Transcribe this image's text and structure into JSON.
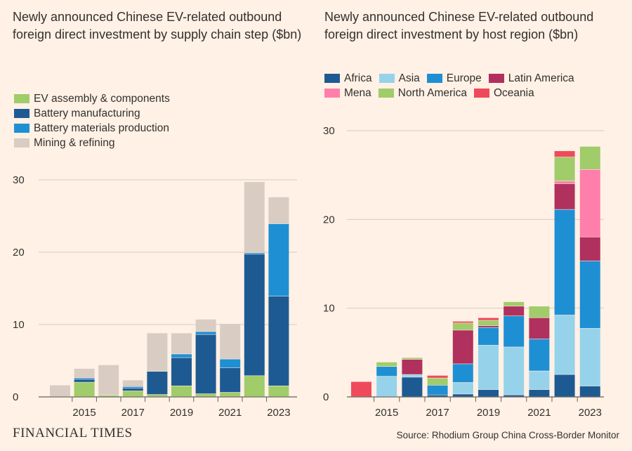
{
  "brand": "FINANCIAL TIMES",
  "source": "Source: Rhodium Group China Cross-Border Monitor",
  "chart_data": [
    {
      "type": "bar",
      "stacked": true,
      "title": "Newly announced Chinese EV-related outbound foreign direct investment by supply chain step ($bn)",
      "x": [
        2014,
        2015,
        2016,
        2017,
        2018,
        2019,
        2020,
        2021,
        2022,
        2023
      ],
      "x_tick_labels": [
        "2015",
        "2017",
        "2019",
        "2021",
        "2023"
      ],
      "y_ticks": [
        0,
        10,
        20,
        30
      ],
      "ylim": [
        0,
        30
      ],
      "legend_position": "top-left",
      "series": [
        {
          "name": "EV assembly & components",
          "color": "#a0cc6a",
          "values": [
            0,
            2.0,
            0.2,
            0.8,
            0.3,
            1.5,
            0.4,
            0.6,
            2.9,
            1.5
          ]
        },
        {
          "name": "Battery manufacturing",
          "color": "#1e5a92",
          "values": [
            0,
            0.4,
            0,
            0.4,
            3.2,
            3.9,
            8.2,
            3.4,
            16.8,
            12.4
          ]
        },
        {
          "name": "Battery materials production",
          "color": "#1f8fd3",
          "values": [
            0,
            0.2,
            0,
            0.2,
            0,
            0.5,
            0.4,
            1.2,
            0.2,
            10.0
          ]
        },
        {
          "name": "Mining & refining",
          "color": "#d9ccc3",
          "values": [
            1.6,
            1.3,
            4.2,
            0.9,
            5.3,
            2.9,
            1.7,
            4.9,
            9.8,
            3.7
          ]
        }
      ]
    },
    {
      "type": "bar",
      "stacked": true,
      "title": "Newly announced Chinese EV-related outbound foreign direct investment by host region ($bn)",
      "x": [
        2014,
        2015,
        2016,
        2017,
        2018,
        2019,
        2020,
        2021,
        2022,
        2023
      ],
      "x_tick_labels": [
        "2015",
        "2017",
        "2019",
        "2021",
        "2023"
      ],
      "y_ticks": [
        0,
        10,
        20,
        30
      ],
      "ylim": [
        0,
        30
      ],
      "legend_position": "top",
      "series": [
        {
          "name": "Africa",
          "color": "#1e5a92",
          "values": [
            0,
            0,
            2.2,
            0.2,
            0.3,
            0.8,
            0.2,
            0.8,
            2.5,
            1.2
          ]
        },
        {
          "name": "Asia",
          "color": "#96d3eb",
          "values": [
            0,
            2.3,
            0.3,
            0,
            1.3,
            5.0,
            5.4,
            2.1,
            6.7,
            6.5
          ]
        },
        {
          "name": "Europe",
          "color": "#1f8fd3",
          "values": [
            0,
            1.1,
            0,
            1.1,
            2.1,
            2.0,
            3.5,
            3.6,
            11.9,
            7.6
          ]
        },
        {
          "name": "Latin America",
          "color": "#b0305e",
          "values": [
            0,
            0,
            1.7,
            0,
            3.8,
            0.2,
            1.1,
            2.4,
            2.9,
            2.7
          ]
        },
        {
          "name": "Mena",
          "color": "#ff7fab",
          "values": [
            0,
            0,
            0,
            0,
            0,
            0,
            0,
            0,
            0.3,
            7.6
          ]
        },
        {
          "name": "North America",
          "color": "#a0cc6a",
          "values": [
            0,
            0.5,
            0.2,
            0.8,
            0.8,
            0.6,
            0.5,
            1.3,
            2.7,
            2.6
          ]
        },
        {
          "name": "Oceania",
          "color": "#ef4a5c",
          "values": [
            1.7,
            0,
            0,
            0.3,
            0.2,
            0.3,
            0,
            0,
            0.7,
            0
          ]
        }
      ]
    }
  ]
}
